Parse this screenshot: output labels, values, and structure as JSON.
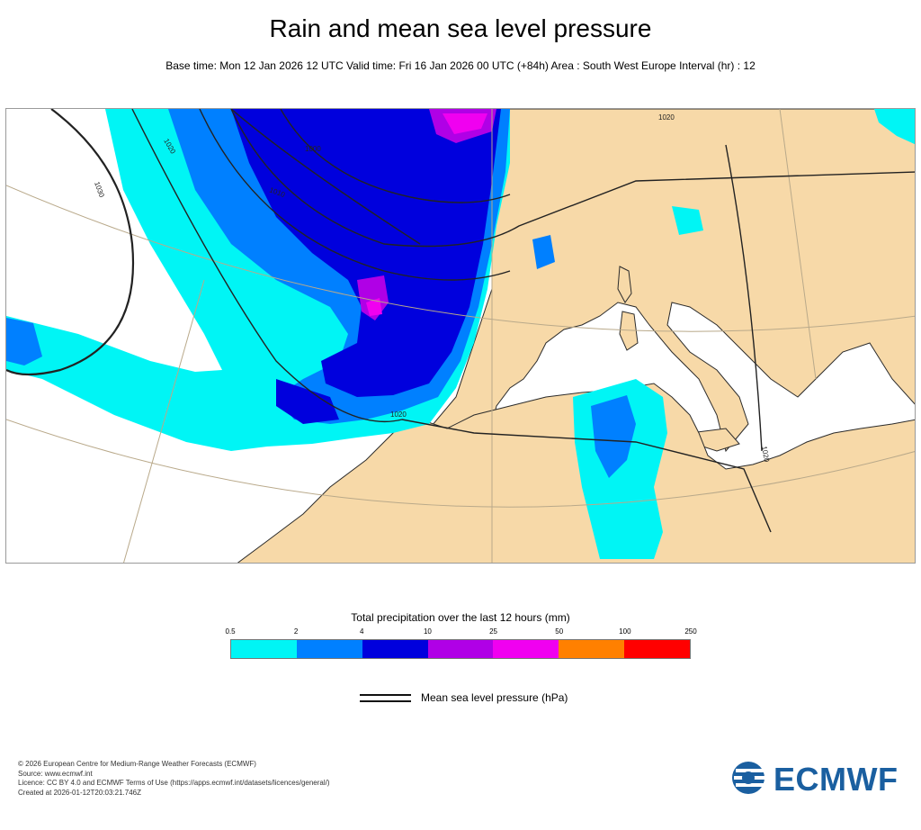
{
  "header": {
    "title": "Rain and mean sea level pressure",
    "subtitle": "Base time: Mon 12 Jan 2026 12 UTC Valid time: Fri 16 Jan 2026 00 UTC (+84h) Area : South West Europe Interval (hr) : 12"
  },
  "map": {
    "isobar_labels": [
      "1030",
      "1020",
      "1000",
      "1010",
      "1020",
      "1020",
      "1020"
    ],
    "colors": {
      "land": "#f7d9a8",
      "sea": "#ffffff",
      "coast": "#2b2b2b",
      "graticule": "#b9a98a",
      "isobar": "#222222"
    }
  },
  "legend": {
    "precip_title": "Total precipitation over the last 12 hours (mm)",
    "ticks": [
      "0.5",
      "2",
      "4",
      "10",
      "25",
      "50",
      "100",
      "250"
    ],
    "colors": [
      "#00f5f5",
      "#0080ff",
      "#0000dd",
      "#b000e6",
      "#f000f0",
      "#ff8000",
      "#ff0000"
    ],
    "msl_label": "Mean sea level pressure (hPa)"
  },
  "footer": {
    "lines": [
      "© 2026 European Centre for Medium-Range Weather Forecasts (ECMWF)",
      "Source: www.ecmwf.int",
      "Licence: CC BY 4.0 and ECMWF Terms of Use (https://apps.ecmwf.int/datasets/licences/general/)",
      "Created at 2026-01-12T20:03:21.746Z"
    ]
  },
  "logo": {
    "text": "ECMWF",
    "color": "#1a5fa0"
  }
}
